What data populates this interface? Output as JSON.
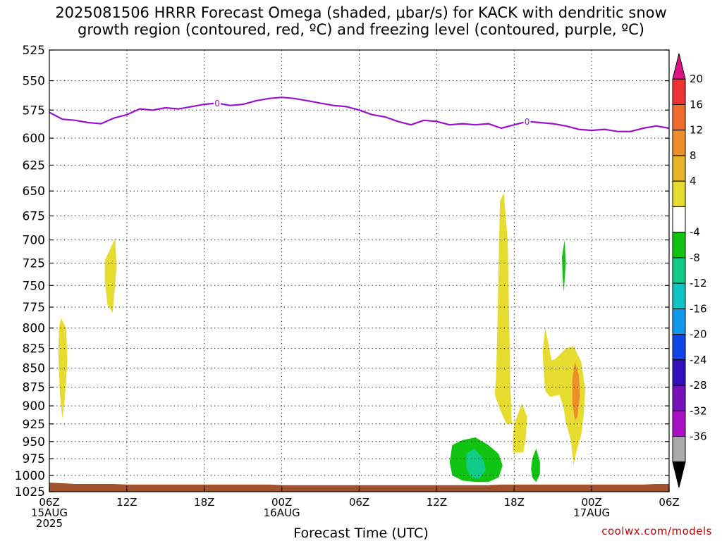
{
  "title": {
    "line1": "2025081506 HRRR Forecast Omega (shaded, μbar/s) for KACK with dendritic snow",
    "line2": "growth region (contoured, red, ºC) and freezing level (contoured, purple, ºC)"
  },
  "credit": "coolwx.com/models",
  "chart_data": {
    "type": "heatmap",
    "title": "2025081506 HRRR Forecast Omega (shaded, μbar/s) for KACK with dendritic snow growth region (contoured, red, ºC) and freezing level (contoured, purple, ºC)",
    "xlabel": "Forecast Time (UTC)",
    "ylabel": "",
    "y_scale": "pressure (hPa), log scale, reversed",
    "ylim": [
      1025,
      525
    ],
    "xlim_hours_from_start": [
      0,
      48
    ],
    "y_ticks": [
      525,
      550,
      575,
      600,
      625,
      650,
      675,
      700,
      725,
      750,
      775,
      800,
      825,
      850,
      875,
      900,
      925,
      950,
      975,
      1000,
      1025
    ],
    "x_ticks": [
      {
        "hour": 0,
        "lines": [
          "06Z",
          "15AUG",
          "2025"
        ]
      },
      {
        "hour": 6,
        "lines": [
          "12Z"
        ]
      },
      {
        "hour": 12,
        "lines": [
          "18Z"
        ]
      },
      {
        "hour": 18,
        "lines": [
          "00Z",
          "16AUG"
        ]
      },
      {
        "hour": 24,
        "lines": [
          "06Z"
        ]
      },
      {
        "hour": 30,
        "lines": [
          "12Z"
        ]
      },
      {
        "hour": 36,
        "lines": [
          "18Z"
        ]
      },
      {
        "hour": 42,
        "lines": [
          "00Z",
          "17AUG"
        ]
      },
      {
        "hour": 48,
        "lines": [
          "06Z"
        ]
      }
    ],
    "grid": true,
    "colorbar": {
      "labels": [
        "20",
        "16",
        "12",
        "8",
        "4",
        "-4",
        "-8",
        "-12",
        "-16",
        "-20",
        "-24",
        "-28",
        "-32",
        "-36"
      ],
      "bins": [
        {
          "color": "#dd1188",
          "shape": "top-arrow"
        },
        {
          "color": "#ee3333"
        },
        {
          "color": "#f06c2c"
        },
        {
          "color": "#ee8e2a"
        },
        {
          "color": "#e8b42c"
        },
        {
          "color": "#e6dc30"
        },
        {
          "color": "#ffffff"
        },
        {
          "color": "#11c411"
        },
        {
          "color": "#11cc88"
        },
        {
          "color": "#11c4c4"
        },
        {
          "color": "#1199ee"
        },
        {
          "color": "#1144e4"
        },
        {
          "color": "#3311bb"
        },
        {
          "color": "#7711bb"
        },
        {
          "color": "#a811c4"
        },
        {
          "color": "#aaaaaa"
        },
        {
          "color": "#000000",
          "shape": "bottom-arrow"
        }
      ]
    },
    "freezing_level": {
      "label": "0",
      "color": "#9911cc",
      "label_hours": [
        13,
        37
      ],
      "hours": [
        0,
        1,
        2,
        3,
        4,
        5,
        6,
        7,
        8,
        9,
        10,
        11,
        12,
        13,
        14,
        15,
        16,
        17,
        18,
        19,
        20,
        21,
        22,
        23,
        24,
        25,
        26,
        27,
        28,
        29,
        30,
        31,
        32,
        33,
        34,
        35,
        36,
        37,
        38,
        39,
        40,
        41,
        42,
        43,
        44,
        45,
        46,
        47,
        48
      ],
      "pressure": [
        577,
        583,
        584,
        586,
        587,
        582,
        579,
        574,
        575,
        573,
        574,
        572,
        570,
        569,
        571,
        570,
        567,
        565,
        564,
        565,
        567,
        569,
        571,
        572,
        575,
        579,
        581,
        585,
        588,
        584,
        585,
        588,
        587,
        588,
        587,
        591,
        588,
        585,
        586,
        587,
        589,
        592,
        593,
        592,
        594,
        594,
        591,
        589,
        591
      ]
    },
    "omega_regions": [
      {
        "value": 4,
        "color": "#e6dc30",
        "points": [
          [
            0.9,
            788
          ],
          [
            1.3,
            800
          ],
          [
            1.4,
            840
          ],
          [
            1.2,
            890
          ],
          [
            1.0,
            918
          ],
          [
            0.8,
            880
          ],
          [
            0.7,
            830
          ],
          [
            0.75,
            800
          ]
        ]
      },
      {
        "value": 4,
        "color": "#e6dc30",
        "points": [
          [
            4.3,
            722
          ],
          [
            5.1,
            698
          ],
          [
            5.2,
            730
          ],
          [
            5.0,
            765
          ],
          [
            4.9,
            782
          ],
          [
            4.5,
            772
          ],
          [
            4.3,
            745
          ]
        ]
      },
      {
        "value": 4,
        "color": "#e6dc30",
        "points": [
          [
            34.9,
            660
          ],
          [
            35.2,
            652
          ],
          [
            35.5,
            700
          ],
          [
            35.6,
            780
          ],
          [
            35.7,
            870
          ],
          [
            35.8,
            920
          ],
          [
            35.9,
            925
          ],
          [
            35.4,
            925
          ],
          [
            34.9,
            905
          ],
          [
            34.5,
            885
          ],
          [
            34.6,
            860
          ],
          [
            34.7,
            800
          ],
          [
            34.8,
            720
          ]
        ]
      },
      {
        "value": 4,
        "color": "#e6dc30",
        "points": [
          [
            36.0,
            925
          ],
          [
            36.6,
            897
          ],
          [
            37.0,
            915
          ],
          [
            36.9,
            945
          ],
          [
            36.7,
            966
          ],
          [
            35.9,
            966
          ],
          [
            35.9,
            945
          ]
        ]
      },
      {
        "value": 4,
        "color": "#e6dc30",
        "points": [
          [
            38.2,
            830
          ],
          [
            38.4,
            800
          ],
          [
            38.6,
            815
          ],
          [
            38.9,
            840
          ],
          [
            39.2,
            838
          ],
          [
            40.0,
            825
          ],
          [
            40.6,
            822
          ],
          [
            41.2,
            842
          ],
          [
            41.5,
            878
          ],
          [
            41.4,
            910
          ],
          [
            41.2,
            940
          ],
          [
            40.8,
            966
          ],
          [
            40.6,
            985
          ],
          [
            40.4,
            950
          ],
          [
            40.0,
            922
          ],
          [
            39.8,
            900
          ],
          [
            39.5,
            885
          ],
          [
            38.8,
            888
          ],
          [
            38.4,
            880
          ],
          [
            38.3,
            855
          ]
        ]
      },
      {
        "value": 8,
        "color": "#ee8e2a",
        "points": [
          [
            40.7,
            842
          ],
          [
            41.0,
            858
          ],
          [
            41.1,
            885
          ],
          [
            40.9,
            915
          ],
          [
            40.7,
            920
          ],
          [
            40.5,
            895
          ],
          [
            40.5,
            865
          ]
        ]
      },
      {
        "value": -4,
        "color": "#11c411",
        "points": [
          [
            31.2,
            955
          ],
          [
            32.0,
            948
          ],
          [
            33.0,
            944
          ],
          [
            34.0,
            955
          ],
          [
            34.8,
            968
          ],
          [
            35.1,
            985
          ],
          [
            34.8,
            1003
          ],
          [
            34.0,
            1010
          ],
          [
            33.0,
            1010
          ],
          [
            32.0,
            1008
          ],
          [
            31.2,
            1000
          ],
          [
            31.0,
            980
          ]
        ]
      },
      {
        "value": -8,
        "color": "#11cc88",
        "points": [
          [
            32.3,
            968
          ],
          [
            32.9,
            960
          ],
          [
            33.6,
            975
          ],
          [
            33.8,
            992
          ],
          [
            33.3,
            1005
          ],
          [
            32.7,
            1003
          ],
          [
            32.3,
            990
          ]
        ]
      },
      {
        "value": -4,
        "color": "#11c411",
        "points": [
          [
            37.4,
            975
          ],
          [
            37.7,
            960
          ],
          [
            38.0,
            980
          ],
          [
            38.0,
            998
          ],
          [
            37.7,
            1010
          ],
          [
            37.4,
            1003
          ],
          [
            37.3,
            990
          ]
        ]
      },
      {
        "value": -4,
        "color": "#11c411",
        "points": [
          [
            39.7,
            718
          ],
          [
            39.9,
            700
          ],
          [
            40.0,
            725
          ],
          [
            39.9,
            745
          ],
          [
            39.85,
            758
          ],
          [
            39.75,
            740
          ]
        ]
      }
    ],
    "terrain": {
      "color": "#a0522d",
      "hours": [
        0,
        1,
        2,
        3,
        4,
        5,
        6,
        7,
        8,
        9,
        10,
        11,
        12,
        13,
        14,
        15,
        16,
        17,
        18,
        19,
        20,
        21,
        22,
        23,
        24,
        25,
        26,
        27,
        28,
        29,
        30,
        31,
        32,
        33,
        34,
        35,
        36,
        37,
        38,
        39,
        40,
        41,
        42,
        43,
        44,
        45,
        46,
        47,
        48
      ],
      "top_pressure": [
        1011,
        1012,
        1013,
        1013,
        1013,
        1013,
        1014,
        1014,
        1014,
        1014,
        1014,
        1014,
        1014,
        1014,
        1014,
        1014,
        1014,
        1014,
        1015,
        1015,
        1015,
        1015,
        1015,
        1015,
        1015,
        1015,
        1015,
        1015,
        1015,
        1015,
        1015,
        1015,
        1015,
        1015,
        1015,
        1014,
        1014,
        1014,
        1014,
        1014,
        1014,
        1014,
        1014,
        1014,
        1014,
        1014,
        1014,
        1013,
        1013
      ]
    }
  }
}
